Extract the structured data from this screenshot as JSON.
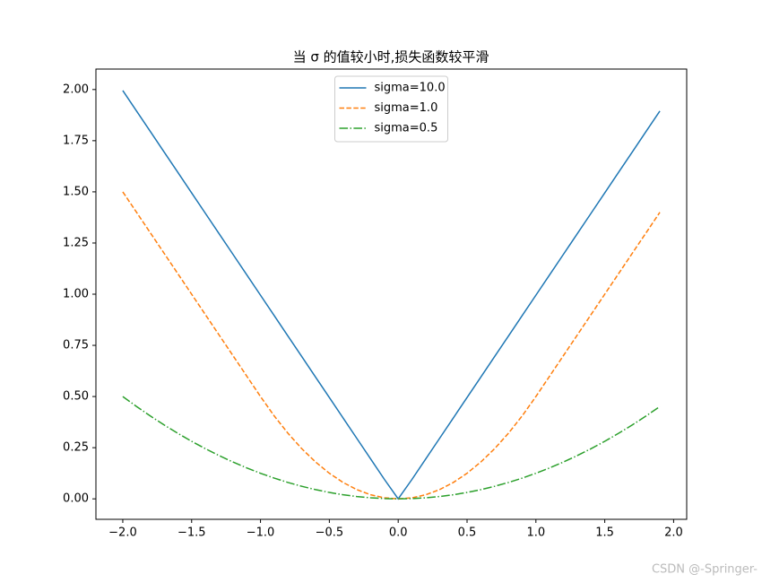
{
  "chart_data": {
    "type": "line",
    "title": "当 σ 的值较小时,损失函数较平滑",
    "x": [
      -2.0,
      -1.9,
      -1.8,
      -1.7,
      -1.6,
      -1.5,
      -1.4,
      -1.3,
      -1.2,
      -1.1,
      -1.0,
      -0.9,
      -0.8,
      -0.7,
      -0.6,
      -0.5,
      -0.4,
      -0.3,
      -0.2,
      -0.1,
      0.0,
      0.1,
      0.2,
      0.3,
      0.4,
      0.5,
      0.6,
      0.7,
      0.8,
      0.9,
      1.0,
      1.1,
      1.2,
      1.3,
      1.4,
      1.5,
      1.6,
      1.7,
      1.8,
      1.9
    ],
    "series": [
      {
        "name": "sigma=10.0",
        "color": "#1f77b4",
        "linestyle": "solid",
        "values": [
          1.995,
          1.895,
          1.795,
          1.695,
          1.595,
          1.495,
          1.395,
          1.295,
          1.195,
          1.095,
          0.995,
          0.895,
          0.795,
          0.695,
          0.595,
          0.495,
          0.395,
          0.295,
          0.195,
          0.095,
          0,
          0.095,
          0.195,
          0.295,
          0.395,
          0.495,
          0.595,
          0.695,
          0.795,
          0.895,
          0.995,
          1.095,
          1.195,
          1.295,
          1.395,
          1.495,
          1.595,
          1.695,
          1.795,
          1.895
        ]
      },
      {
        "name": "sigma=1.0",
        "color": "#ff7f0e",
        "linestyle": "dashed",
        "values": [
          1.5,
          1.4,
          1.3,
          1.2,
          1.1,
          1.0,
          0.9,
          0.8,
          0.7,
          0.6,
          0.5,
          0.405,
          0.32,
          0.245,
          0.18,
          0.125,
          0.08,
          0.045,
          0.02,
          0.005,
          0,
          0.005,
          0.02,
          0.045,
          0.08,
          0.125,
          0.18,
          0.245,
          0.32,
          0.405,
          0.5,
          0.6,
          0.7,
          0.8,
          0.9,
          1.0,
          1.1,
          1.2,
          1.3,
          1.4
        ]
      },
      {
        "name": "sigma=0.5",
        "color": "#2ca02c",
        "linestyle": "dashdot",
        "values": [
          0.5,
          0.45125,
          0.405,
          0.36125,
          0.32,
          0.28125,
          0.245,
          0.21125,
          0.18,
          0.15125,
          0.125,
          0.10125,
          0.08,
          0.06125,
          0.045,
          0.03125,
          0.02,
          0.01125,
          0.005,
          0.00125,
          0,
          0.00125,
          0.005,
          0.01125,
          0.02,
          0.03125,
          0.045,
          0.06125,
          0.08,
          0.10125,
          0.125,
          0.15125,
          0.18,
          0.21125,
          0.245,
          0.28125,
          0.32,
          0.36125,
          0.405,
          0.45125
        ]
      }
    ],
    "xlim": [
      -2.195,
      2.095
    ],
    "ylim": [
      -0.1,
      2.1
    ],
    "xticks": [
      {
        "value": -2,
        "label": "−2.0"
      },
      {
        "value": -1.5,
        "label": "−1.5"
      },
      {
        "value": -1,
        "label": "−1.0"
      },
      {
        "value": -0.5,
        "label": "−0.5"
      },
      {
        "value": 0,
        "label": "0.0"
      },
      {
        "value": 0.5,
        "label": "0.5"
      },
      {
        "value": 1,
        "label": "1.0"
      },
      {
        "value": 1.5,
        "label": "1.5"
      },
      {
        "value": 2,
        "label": "2.0"
      }
    ],
    "yticks": [
      {
        "value": 0,
        "label": "0.00"
      },
      {
        "value": 0.25,
        "label": "0.25"
      },
      {
        "value": 0.5,
        "label": "0.50"
      },
      {
        "value": 0.75,
        "label": "0.75"
      },
      {
        "value": 1,
        "label": "1.00"
      },
      {
        "value": 1.25,
        "label": "1.25"
      },
      {
        "value": 1.5,
        "label": "1.50"
      },
      {
        "value": 1.75,
        "label": "1.75"
      },
      {
        "value": 2,
        "label": "2.00"
      }
    ],
    "legend": "upper center",
    "grid": false
  },
  "watermark": "CSDN @-Springer-"
}
